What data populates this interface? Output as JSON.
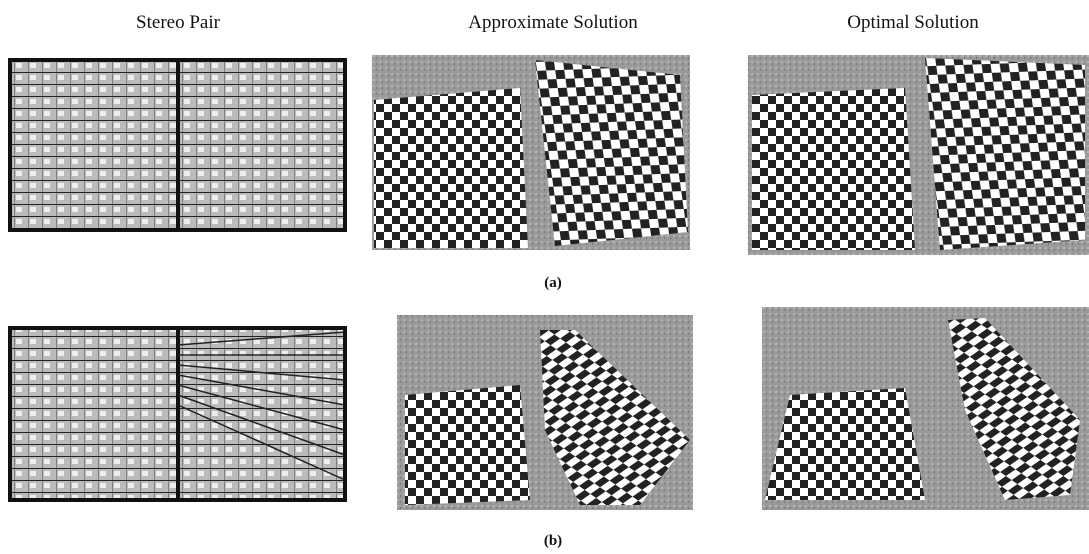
{
  "headers": [
    "Stereo Pair",
    "Approximate Solution",
    "Optimal Solution"
  ],
  "panel_labels": [
    "(a)",
    "(b)"
  ]
}
